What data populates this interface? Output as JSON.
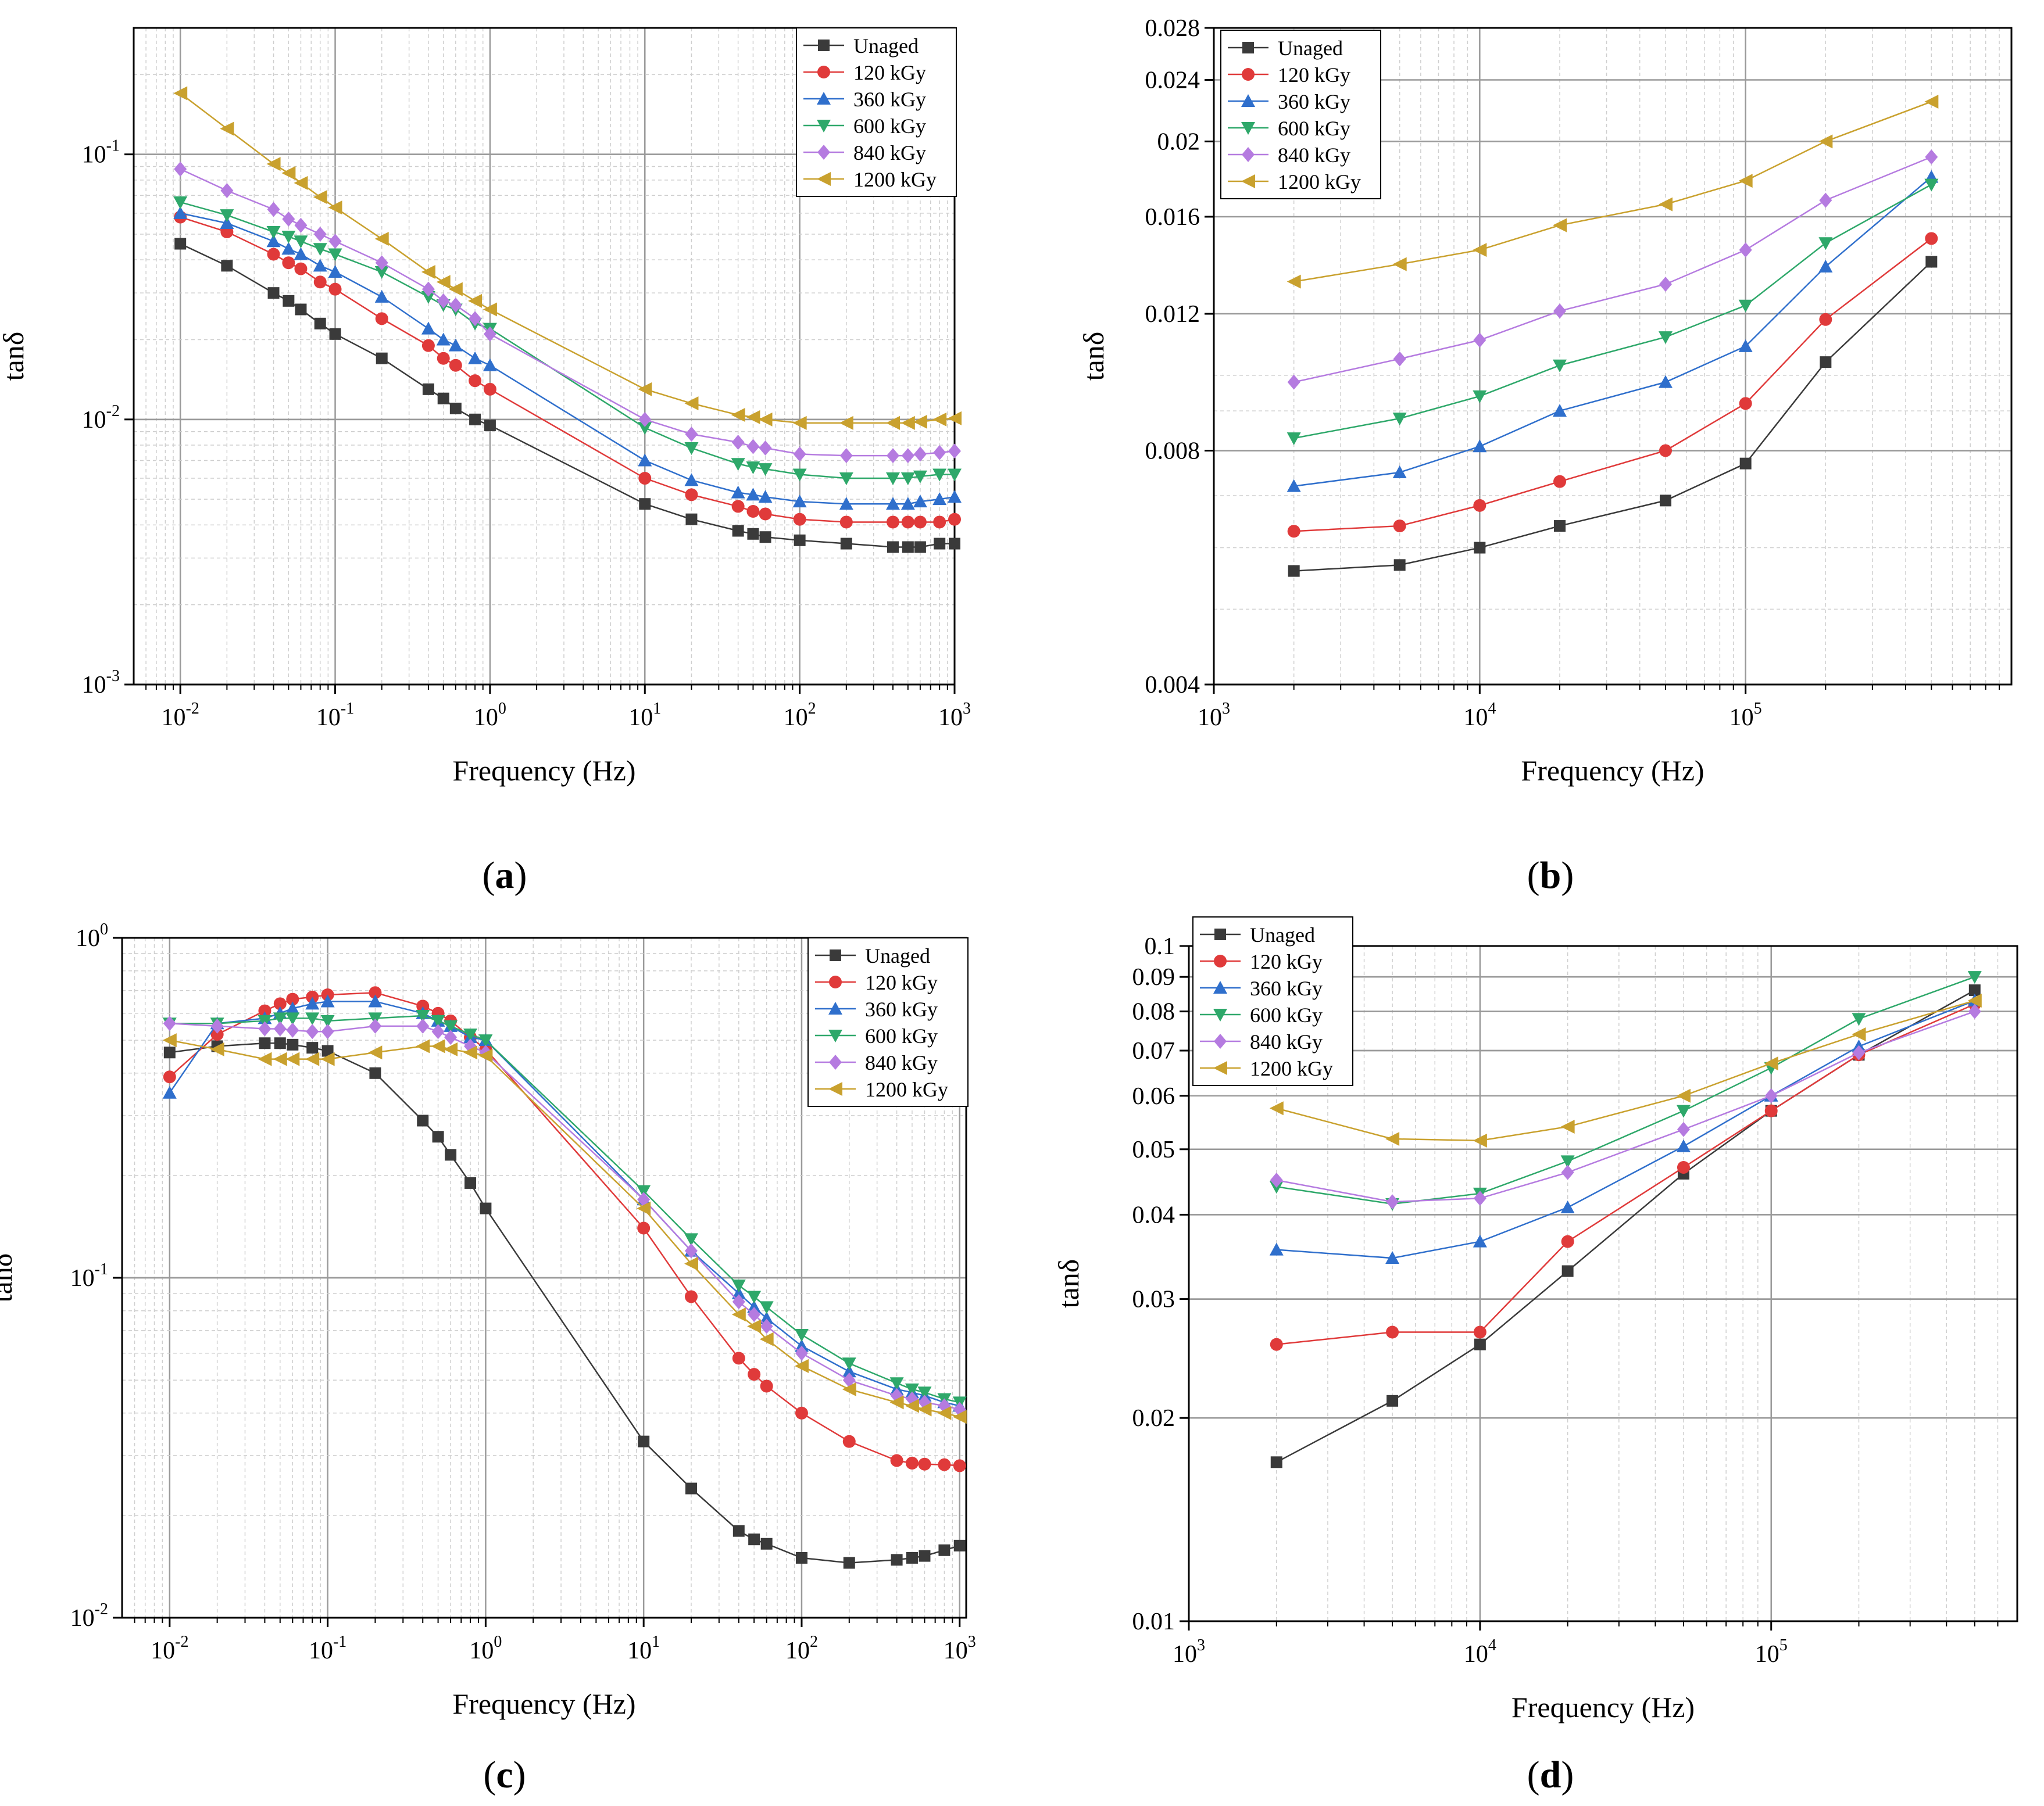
{
  "figure": {
    "colors": {
      "Unaged": "#3a3a3a",
      "120 kGy": "#e03a3a",
      "360 kGy": "#2f6fcc",
      "600 kGy": "#2ea86a",
      "840 kGy": "#b57be0",
      "1200 kGy": "#c9a12e"
    },
    "markers": {
      "Unaged": "square",
      "120 kGy": "circle",
      "360 kGy": "triangle-up",
      "600 kGy": "triangle-down",
      "840 kGy": "diamond",
      "1200 kGy": "triangle-left"
    }
  },
  "chart_data": [
    {
      "id": "a",
      "panel_label": "a",
      "type": "line",
      "title": "",
      "xlabel": "Frequency (Hz)",
      "ylabel": "tanδ",
      "xscale": "log",
      "yscale": "log",
      "xlim": [
        0.005,
        1000
      ],
      "ylim": [
        0.001,
        0.3
      ],
      "xticks": [
        {
          "v": 0.01,
          "base": "10",
          "exp": "-2"
        },
        {
          "v": 0.1,
          "base": "10",
          "exp": "-1"
        },
        {
          "v": 1,
          "base": "10",
          "exp": "0"
        },
        {
          "v": 10,
          "base": "10",
          "exp": "1"
        },
        {
          "v": 100,
          "base": "10",
          "exp": "2"
        },
        {
          "v": 1000,
          "base": "10",
          "exp": "3"
        }
      ],
      "yticks": [
        {
          "v": 0.001,
          "base": "10",
          "exp": "-3"
        },
        {
          "v": 0.01,
          "base": "10",
          "exp": "-2"
        },
        {
          "v": 0.1,
          "base": "10",
          "exp": "-1"
        }
      ],
      "grid": true,
      "legend_position": "top-right",
      "x": [
        0.01,
        0.02,
        0.04,
        0.05,
        0.06,
        0.08,
        0.1,
        0.2,
        0.4,
        0.5,
        0.6,
        0.8,
        1,
        10,
        20,
        40,
        50,
        60,
        100,
        200,
        400,
        500,
        600,
        800,
        1000
      ],
      "series": [
        {
          "name": "Unaged",
          "values": [
            0.046,
            0.038,
            0.03,
            0.028,
            0.026,
            0.023,
            0.021,
            0.017,
            0.013,
            0.012,
            0.011,
            0.01,
            0.0095,
            0.0048,
            0.0042,
            0.0038,
            0.0037,
            0.0036,
            0.0035,
            0.0034,
            0.0033,
            0.0033,
            0.0033,
            0.0034,
            0.0034
          ]
        },
        {
          "name": "120 kGy",
          "values": [
            0.058,
            0.051,
            0.042,
            0.039,
            0.037,
            0.033,
            0.031,
            0.024,
            0.019,
            0.017,
            0.016,
            0.014,
            0.013,
            0.006,
            0.0052,
            0.0047,
            0.0045,
            0.0044,
            0.0042,
            0.0041,
            0.0041,
            0.0041,
            0.0041,
            0.0041,
            0.0042
          ]
        },
        {
          "name": "360 kGy",
          "values": [
            0.06,
            0.055,
            0.047,
            0.044,
            0.042,
            0.038,
            0.036,
            0.029,
            0.022,
            0.02,
            0.019,
            0.017,
            0.016,
            0.007,
            0.0059,
            0.0053,
            0.0052,
            0.0051,
            0.0049,
            0.0048,
            0.0048,
            0.0048,
            0.0049,
            0.005,
            0.0051
          ]
        },
        {
          "name": "600 kGy",
          "values": [
            0.066,
            0.059,
            0.051,
            0.049,
            0.047,
            0.044,
            0.042,
            0.036,
            0.029,
            0.027,
            0.026,
            0.023,
            0.022,
            0.0093,
            0.0078,
            0.0068,
            0.0066,
            0.0065,
            0.0062,
            0.006,
            0.006,
            0.006,
            0.0061,
            0.0062,
            0.0062
          ]
        },
        {
          "name": "840 kGy",
          "values": [
            0.088,
            0.073,
            0.062,
            0.057,
            0.054,
            0.05,
            0.047,
            0.039,
            0.031,
            0.028,
            0.027,
            0.024,
            0.021,
            0.01,
            0.0088,
            0.0082,
            0.0079,
            0.0078,
            0.0074,
            0.0073,
            0.0073,
            0.0073,
            0.0074,
            0.0075,
            0.0076
          ]
        },
        {
          "name": "1200 kGy",
          "values": [
            0.17,
            0.125,
            0.092,
            0.085,
            0.078,
            0.069,
            0.063,
            0.048,
            0.036,
            0.033,
            0.031,
            0.028,
            0.026,
            0.013,
            0.0115,
            0.0104,
            0.0102,
            0.01,
            0.0097,
            0.0097,
            0.0097,
            0.0097,
            0.0098,
            0.01,
            0.0101
          ]
        }
      ]
    },
    {
      "id": "b",
      "panel_label": "b",
      "type": "line",
      "title": "",
      "xlabel": "Frequency (Hz)",
      "ylabel": "tanδ",
      "xscale": "log",
      "yscale": "log",
      "xlim": [
        1000,
        1000000
      ],
      "ylim": [
        0.004,
        0.028
      ],
      "xticks": [
        {
          "v": 1000,
          "base": "10",
          "exp": "3"
        },
        {
          "v": 10000,
          "base": "10",
          "exp": "4"
        },
        {
          "v": 100000,
          "base": "10",
          "exp": "5"
        }
      ],
      "yticks": [
        {
          "v": 0.004,
          "label": "0.004"
        },
        {
          "v": 0.008,
          "label": "0.008"
        },
        {
          "v": 0.012,
          "label": "0.012"
        },
        {
          "v": 0.016,
          "label": "0.016"
        },
        {
          "v": 0.02,
          "label": "0.02"
        },
        {
          "v": 0.024,
          "label": "0.024"
        },
        {
          "v": 0.028,
          "label": "0.028"
        }
      ],
      "grid": true,
      "legend_position": "top-left",
      "x": [
        2000,
        5000,
        10000,
        20000,
        50000,
        100000,
        200000,
        500000
      ],
      "series": [
        {
          "name": "Unaged",
          "values": [
            0.0056,
            0.0057,
            0.006,
            0.0064,
            0.0069,
            0.0077,
            0.0104,
            0.014
          ]
        },
        {
          "name": "120 kGy",
          "values": [
            0.0063,
            0.0064,
            0.0068,
            0.0073,
            0.008,
            0.0092,
            0.0118,
            0.015
          ]
        },
        {
          "name": "360 kGy",
          "values": [
            0.0072,
            0.0075,
            0.0081,
            0.009,
            0.0098,
            0.0109,
            0.0138,
            0.018
          ]
        },
        {
          "name": "600 kGy",
          "values": [
            0.0083,
            0.0088,
            0.0094,
            0.0103,
            0.0112,
            0.0123,
            0.0148,
            0.0176
          ]
        },
        {
          "name": "840 kGy",
          "values": [
            0.0098,
            0.0105,
            0.0111,
            0.0121,
            0.0131,
            0.0145,
            0.0168,
            0.0191
          ]
        },
        {
          "name": "1200 kGy",
          "values": [
            0.0132,
            0.0139,
            0.0145,
            0.0156,
            0.0166,
            0.0178,
            0.02,
            0.0225
          ]
        }
      ]
    },
    {
      "id": "c",
      "panel_label": "c",
      "type": "line",
      "title": "",
      "xlabel": "Frequency (Hz)",
      "ylabel": "tanδ",
      "xscale": "log",
      "yscale": "log",
      "xlim": [
        0.005,
        1100
      ],
      "ylim": [
        0.01,
        1
      ],
      "xticks": [
        {
          "v": 0.01,
          "base": "10",
          "exp": "-2"
        },
        {
          "v": 0.1,
          "base": "10",
          "exp": "-1"
        },
        {
          "v": 1,
          "base": "10",
          "exp": "0"
        },
        {
          "v": 10,
          "base": "10",
          "exp": "1"
        },
        {
          "v": 100,
          "base": "10",
          "exp": "2"
        },
        {
          "v": 1000,
          "base": "10",
          "exp": "3"
        }
      ],
      "yticks": [
        {
          "v": 0.01,
          "base": "10",
          "exp": "-2"
        },
        {
          "v": 0.1,
          "base": "10",
          "exp": "-1"
        },
        {
          "v": 1,
          "base": "10",
          "exp": "0"
        }
      ],
      "grid": true,
      "legend_position": "top-right",
      "x": [
        0.01,
        0.02,
        0.04,
        0.05,
        0.06,
        0.08,
        0.1,
        0.2,
        0.4,
        0.5,
        0.6,
        0.8,
        1,
        10,
        20,
        40,
        50,
        60,
        100,
        200,
        400,
        500,
        600,
        800,
        1000
      ],
      "series": [
        {
          "name": "Unaged",
          "values": [
            0.46,
            0.48,
            0.49,
            0.49,
            0.485,
            0.475,
            0.465,
            0.4,
            0.29,
            0.26,
            0.23,
            0.19,
            0.16,
            0.033,
            0.024,
            0.018,
            0.017,
            0.0165,
            0.015,
            0.0145,
            0.0148,
            0.015,
            0.0152,
            0.0158,
            0.0163
          ]
        },
        {
          "name": "120 kGy",
          "values": [
            0.39,
            0.52,
            0.61,
            0.64,
            0.66,
            0.67,
            0.68,
            0.69,
            0.63,
            0.6,
            0.57,
            0.51,
            0.47,
            0.14,
            0.088,
            0.058,
            0.052,
            0.048,
            0.04,
            0.033,
            0.029,
            0.0285,
            0.0283,
            0.0282,
            0.028
          ]
        },
        {
          "name": "360 kGy",
          "values": [
            0.35,
            0.56,
            0.58,
            0.6,
            0.62,
            0.64,
            0.65,
            0.65,
            0.6,
            0.57,
            0.55,
            0.51,
            0.5,
            0.17,
            0.12,
            0.09,
            0.082,
            0.076,
            0.063,
            0.053,
            0.047,
            0.046,
            0.045,
            0.043,
            0.042
          ]
        },
        {
          "name": "600 kGy",
          "values": [
            0.56,
            0.56,
            0.57,
            0.58,
            0.58,
            0.58,
            0.57,
            0.58,
            0.59,
            0.57,
            0.55,
            0.52,
            0.5,
            0.18,
            0.13,
            0.095,
            0.088,
            0.082,
            0.068,
            0.056,
            0.049,
            0.047,
            0.046,
            0.044,
            0.043
          ]
        },
        {
          "name": "840 kGy",
          "values": [
            0.56,
            0.55,
            0.54,
            0.54,
            0.535,
            0.53,
            0.53,
            0.55,
            0.55,
            0.53,
            0.51,
            0.48,
            0.46,
            0.17,
            0.12,
            0.085,
            0.078,
            0.072,
            0.06,
            0.05,
            0.045,
            0.044,
            0.043,
            0.042,
            0.041
          ]
        },
        {
          "name": "1200 kGy",
          "values": [
            0.5,
            0.47,
            0.44,
            0.44,
            0.44,
            0.44,
            0.44,
            0.46,
            0.48,
            0.48,
            0.47,
            0.46,
            0.45,
            0.16,
            0.11,
            0.078,
            0.072,
            0.066,
            0.055,
            0.047,
            0.043,
            0.042,
            0.041,
            0.04,
            0.039
          ]
        }
      ]
    },
    {
      "id": "d",
      "panel_label": "d",
      "type": "line",
      "title": "",
      "xlabel": "Frequency (Hz)",
      "ylabel": "tanδ",
      "xscale": "log",
      "yscale": "log",
      "xlim": [
        1000,
        700000
      ],
      "ylim": [
        0.01,
        0.1
      ],
      "xticks": [
        {
          "v": 1000,
          "base": "10",
          "exp": "3"
        },
        {
          "v": 10000,
          "base": "10",
          "exp": "4"
        },
        {
          "v": 100000,
          "base": "10",
          "exp": "5"
        }
      ],
      "yticks": [
        {
          "v": 0.01,
          "label": "0.01"
        },
        {
          "v": 0.02,
          "label": "0.02"
        },
        {
          "v": 0.03,
          "label": "0.03"
        },
        {
          "v": 0.04,
          "label": "0.04"
        },
        {
          "v": 0.05,
          "label": "0.05"
        },
        {
          "v": 0.06,
          "label": "0.06"
        },
        {
          "v": 0.07,
          "label": "0.07"
        },
        {
          "v": 0.08,
          "label": "0.08"
        },
        {
          "v": 0.09,
          "label": "0.09"
        },
        {
          "v": 0.1,
          "label": "0.1"
        }
      ],
      "grid": true,
      "legend_position": "top-left",
      "x": [
        2000,
        5000,
        10000,
        20000,
        50000,
        100000,
        200000,
        500000
      ],
      "series": [
        {
          "name": "Unaged",
          "values": [
            0.0172,
            0.0212,
            0.0257,
            0.033,
            0.046,
            0.057,
            0.069,
            0.086
          ]
        },
        {
          "name": "120 kGy",
          "values": [
            0.0257,
            0.0268,
            0.0268,
            0.0365,
            0.047,
            0.057,
            0.069,
            0.082
          ]
        },
        {
          "name": "360 kGy",
          "values": [
            0.0355,
            0.0345,
            0.0365,
            0.041,
            0.0505,
            0.06,
            0.071,
            0.083
          ]
        },
        {
          "name": "600 kGy",
          "values": [
            0.044,
            0.0415,
            0.043,
            0.048,
            0.057,
            0.066,
            0.078,
            0.09
          ]
        },
        {
          "name": "840 kGy",
          "values": [
            0.045,
            0.0418,
            0.0423,
            0.0462,
            0.0535,
            0.06,
            0.0695,
            0.08
          ]
        },
        {
          "name": "1200 kGy",
          "values": [
            0.0575,
            0.0518,
            0.0515,
            0.054,
            0.06,
            0.067,
            0.074,
            0.083
          ]
        }
      ]
    }
  ]
}
